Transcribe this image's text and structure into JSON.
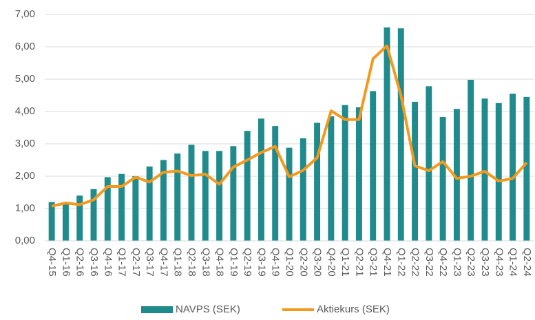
{
  "chart_data": {
    "type": "bar_line",
    "categories": [
      "Q4-15",
      "Q1-16",
      "Q2-16",
      "Q3-16",
      "Q4-16",
      "Q1-17",
      "Q2-17",
      "Q3-17",
      "Q4-17",
      "Q1-18",
      "Q2-18",
      "Q3-18",
      "Q4-18",
      "Q1-19",
      "Q2-19",
      "Q3-19",
      "Q4-19",
      "Q1-20",
      "Q2-20",
      "Q3-20",
      "Q4-20",
      "Q1-21",
      "Q2-21",
      "Q3-21",
      "Q4-21",
      "Q1-22",
      "Q2-22",
      "Q3-22",
      "Q4-22",
      "Q1-23",
      "Q2-23",
      "Q3-23",
      "Q4-23",
      "Q1-24",
      "Q2-24"
    ],
    "series": [
      {
        "name": "NAVPS (SEK)",
        "type": "bar",
        "color": "#1f8b8c",
        "values": [
          1.2,
          1.15,
          1.4,
          1.6,
          1.97,
          2.07,
          2.0,
          2.3,
          2.5,
          2.7,
          2.97,
          2.78,
          2.78,
          2.93,
          3.4,
          3.78,
          3.55,
          2.88,
          3.17,
          3.65,
          3.85,
          4.2,
          4.13,
          4.63,
          6.6,
          6.57,
          4.3,
          4.78,
          3.83,
          4.08,
          4.98,
          4.4,
          4.26,
          4.55,
          4.45
        ]
      },
      {
        "name": "Aktiekurs (SEK)",
        "type": "line",
        "color": "#f39a1e",
        "values": [
          1.07,
          1.17,
          1.12,
          1.27,
          1.68,
          1.68,
          1.97,
          1.82,
          2.12,
          2.16,
          2.02,
          2.06,
          1.75,
          2.28,
          2.5,
          2.73,
          2.92,
          1.98,
          2.18,
          2.57,
          4.02,
          3.75,
          3.75,
          5.63,
          6.03,
          4.5,
          2.32,
          2.17,
          2.45,
          1.93,
          2.0,
          2.15,
          1.85,
          1.93,
          2.42
        ]
      }
    ],
    "ylim": [
      0,
      7
    ],
    "yticks": [
      {
        "value": 0,
        "label": "0,00"
      },
      {
        "value": 1,
        "label": "1,00"
      },
      {
        "value": 2,
        "label": "2,00"
      },
      {
        "value": 3,
        "label": "3,00"
      },
      {
        "value": 4,
        "label": "4,00"
      },
      {
        "value": 5,
        "label": "5,00"
      },
      {
        "value": 6,
        "label": "6,00"
      },
      {
        "value": 7,
        "label": "7,00"
      }
    ],
    "grid": true,
    "legend": "bottom"
  }
}
